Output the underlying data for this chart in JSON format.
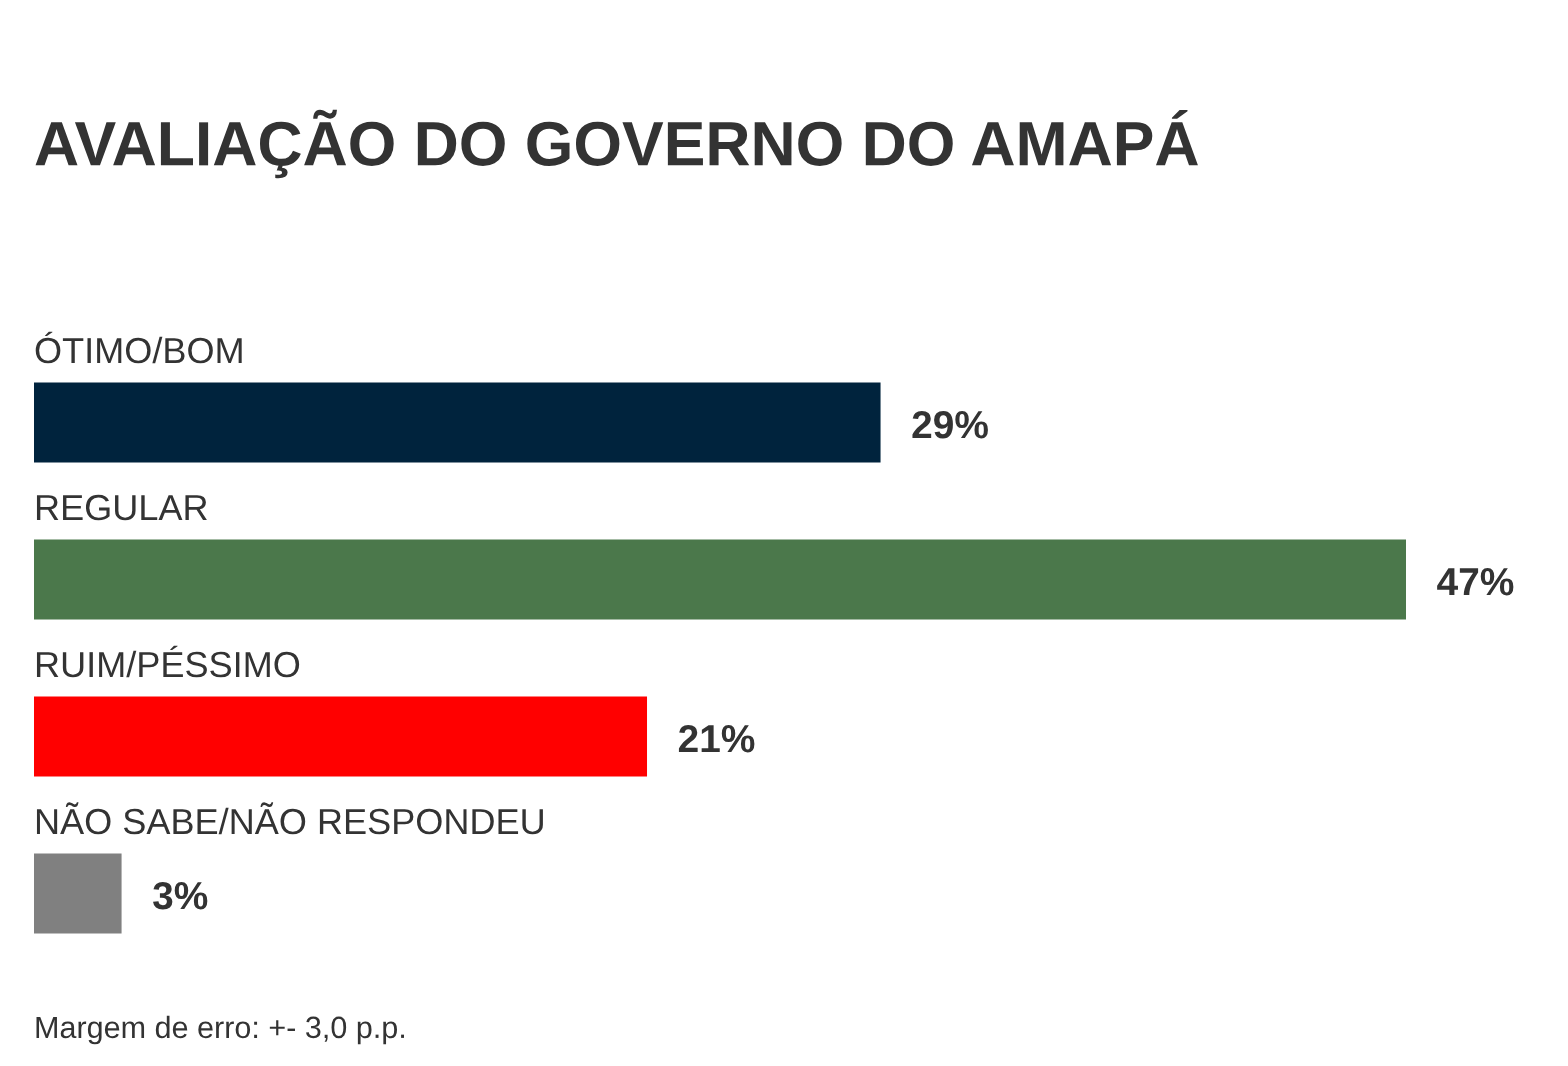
{
  "chart_data": {
    "type": "bar",
    "orientation": "horizontal",
    "title": "AVALIAÇÃO DO GOVERNO DO AMAPÁ",
    "categories": [
      "ÓTIMO/BOM",
      "REGULAR",
      "RUIM/PÉSSIMO",
      "NÃO SABE/NÃO RESPONDEU"
    ],
    "values": [
      29,
      47,
      21,
      3
    ],
    "colors": [
      "#00233d",
      "#4b784b",
      "#ff0000",
      "#808080"
    ],
    "value_labels": [
      "29%",
      "47%",
      "21%",
      "3%"
    ],
    "tick_labels": "y",
    "annotations": [
      "Margem de erro: +- 3,0 p.p."
    ]
  }
}
